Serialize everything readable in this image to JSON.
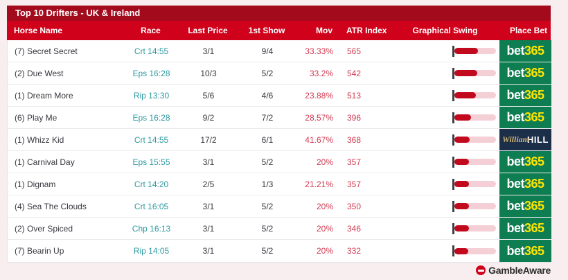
{
  "widget": {
    "title": "Top 10 Drifters - UK & Ireland"
  },
  "table": {
    "columns": [
      "Horse Name",
      "Race",
      "Last Price",
      "1st Show",
      "Mov",
      "ATR Index",
      "Graphical Swing",
      "Place Bet"
    ],
    "rows": [
      {
        "horse": "(7) Secret Secret",
        "race": "Crt 14:55",
        "last_price": "3/1",
        "first_show": "9/4",
        "mov": "33.33%",
        "atr_index": "565",
        "swing_pct": 56.5,
        "bookmaker": "bet365"
      },
      {
        "horse": "(2) Due West",
        "race": "Eps 16:28",
        "last_price": "10/3",
        "first_show": "5/2",
        "mov": "33.2%",
        "atr_index": "542",
        "swing_pct": 54.2,
        "bookmaker": "bet365"
      },
      {
        "horse": "(1) Dream More",
        "race": "Rip 13:30",
        "last_price": "5/6",
        "first_show": "4/6",
        "mov": "23.88%",
        "atr_index": "513",
        "swing_pct": 51.3,
        "bookmaker": "bet365"
      },
      {
        "horse": "(6) Play Me",
        "race": "Eps 16:28",
        "last_price": "9/2",
        "first_show": "7/2",
        "mov": "28.57%",
        "atr_index": "396",
        "swing_pct": 39.6,
        "bookmaker": "bet365"
      },
      {
        "horse": "(1) Whizz Kid",
        "race": "Crt 14:55",
        "last_price": "17/2",
        "first_show": "6/1",
        "mov": "41.67%",
        "atr_index": "368",
        "swing_pct": 36.8,
        "bookmaker": "williamhill"
      },
      {
        "horse": "(1) Carnival Day",
        "race": "Eps 15:55",
        "last_price": "3/1",
        "first_show": "5/2",
        "mov": "20%",
        "atr_index": "357",
        "swing_pct": 35.7,
        "bookmaker": "bet365"
      },
      {
        "horse": "(1) Dignam",
        "race": "Crt 14:20",
        "last_price": "2/5",
        "first_show": "1/3",
        "mov": "21.21%",
        "atr_index": "357",
        "swing_pct": 35.7,
        "bookmaker": "bet365"
      },
      {
        "horse": "(4) Sea The Clouds",
        "race": "Crt 16:05",
        "last_price": "3/1",
        "first_show": "5/2",
        "mov": "20%",
        "atr_index": "350",
        "swing_pct": 35.0,
        "bookmaker": "bet365"
      },
      {
        "horse": "(2) Over Spiced",
        "race": "Chp 16:13",
        "last_price": "3/1",
        "first_show": "5/2",
        "mov": "20%",
        "atr_index": "346",
        "swing_pct": 34.6,
        "bookmaker": "bet365"
      },
      {
        "horse": "(7) Bearin Up",
        "race": "Rip 14:05",
        "last_price": "3/1",
        "first_show": "5/2",
        "mov": "20%",
        "atr_index": "332",
        "swing_pct": 33.2,
        "bookmaker": "bet365"
      }
    ]
  },
  "bookmakers": {
    "bet365": {
      "text1": "bet",
      "text2": "365"
    },
    "williamhill": {
      "text1": "William",
      "text2": "HILL"
    }
  },
  "footer": {
    "gambleaware": "GambleAware"
  },
  "colors": {
    "page_bg": "#f8edef",
    "title_bar": "#a30b1d",
    "header_bar": "#d0021b",
    "race_link": "#2d9aa1",
    "value_red": "#d23a52",
    "swing_fill": "#c20a1e",
    "swing_track": "#f5cfd6",
    "bet365_bg": "#0f7d52",
    "bet365_yellow": "#ffe500",
    "whill_bg": "#1c2f49",
    "whill_gold": "#cdb272"
  }
}
